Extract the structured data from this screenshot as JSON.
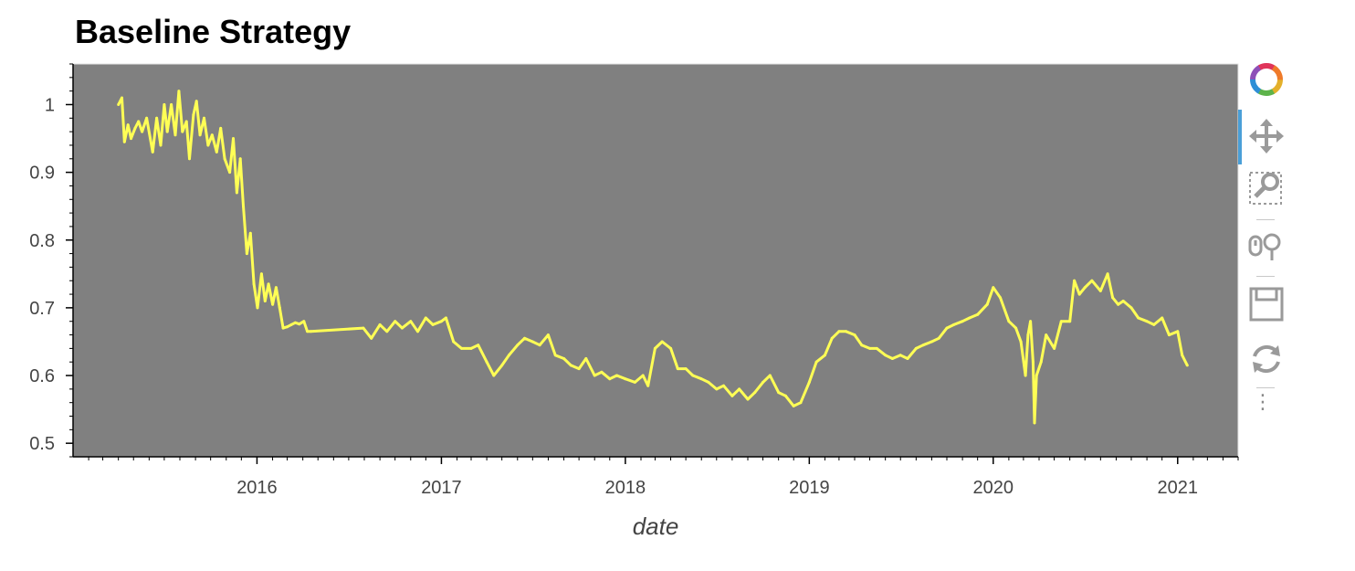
{
  "chart_data": {
    "type": "line",
    "title": "Baseline Strategy",
    "xlabel": "date",
    "ylabel": "",
    "x_tick_labels": [
      "2016",
      "2017",
      "2018",
      "2019",
      "2020",
      "2021"
    ],
    "y_tick_labels": [
      "0.5",
      "0.6",
      "0.7",
      "0.8",
      "0.9",
      "1"
    ],
    "y_ticks": [
      0.5,
      0.6,
      0.7,
      0.8,
      0.9,
      1.0
    ],
    "ylim": [
      0.48,
      1.06
    ],
    "xlim": [
      "2015-01-01",
      "2021-05-01"
    ],
    "grid": false,
    "colors": {
      "plot_background": "#808080",
      "line": "#ffff55"
    },
    "series": [
      {
        "x": [
          "2015-04-01",
          "2015-04-08",
          "2015-04-13",
          "2015-04-20",
          "2015-04-26",
          "2015-05-04",
          "2015-05-11",
          "2015-05-18",
          "2015-05-27",
          "2015-06-08",
          "2015-06-16",
          "2015-06-24",
          "2015-07-01",
          "2015-07-07",
          "2015-07-15",
          "2015-07-23",
          "2015-07-30",
          "2015-08-06",
          "2015-08-14",
          "2015-08-20",
          "2015-08-28",
          "2015-09-03",
          "2015-09-10",
          "2015-09-18",
          "2015-09-26",
          "2015-10-04",
          "2015-10-13",
          "2015-10-21",
          "2015-10-29",
          "2015-11-08",
          "2015-11-15",
          "2015-11-22",
          "2015-11-29",
          "2015-12-05",
          "2015-12-12",
          "2015-12-19",
          "2015-12-26",
          "2016-01-02",
          "2016-01-10",
          "2016-01-17",
          "2016-01-24",
          "2016-02-01",
          "2016-02-08",
          "2016-02-15",
          "2016-02-22",
          "2016-03-01",
          "2016-03-09",
          "2016-03-17",
          "2016-03-25",
          "2016-04-03",
          "2016-04-10",
          "2016-04-17",
          "2016-07-30",
          "2016-08-15",
          "2016-09-01",
          "2016-09-15",
          "2016-10-01",
          "2016-10-15",
          "2016-11-01",
          "2016-11-15",
          "2016-12-01",
          "2016-12-15",
          "2017-01-01",
          "2017-01-10",
          "2017-01-25",
          "2017-02-10",
          "2017-03-01",
          "2017-03-15",
          "2017-04-01",
          "2017-04-15",
          "2017-05-01",
          "2017-05-15",
          "2017-06-01",
          "2017-06-15",
          "2017-07-01",
          "2017-07-15",
          "2017-08-01",
          "2017-08-15",
          "2017-09-01",
          "2017-09-15",
          "2017-10-01",
          "2017-10-15",
          "2017-11-01",
          "2017-11-15",
          "2017-12-01",
          "2017-12-15",
          "2018-01-01",
          "2018-01-20",
          "2018-02-05",
          "2018-02-15",
          "2018-03-01",
          "2018-03-15",
          "2018-04-01",
          "2018-04-15",
          "2018-05-01",
          "2018-05-15",
          "2018-06-01",
          "2018-06-15",
          "2018-07-01",
          "2018-07-15",
          "2018-08-01",
          "2018-08-15",
          "2018-09-01",
          "2018-09-15",
          "2018-10-01",
          "2018-10-15",
          "2018-11-01",
          "2018-11-15",
          "2018-12-01",
          "2018-12-15",
          "2019-01-01",
          "2019-01-15",
          "2019-02-01",
          "2019-02-15",
          "2019-03-01",
          "2019-03-15",
          "2019-04-01",
          "2019-04-15",
          "2019-05-01",
          "2019-05-15",
          "2019-06-01",
          "2019-06-15",
          "2019-07-01",
          "2019-07-15",
          "2019-08-01",
          "2019-08-15",
          "2019-09-01",
          "2019-09-15",
          "2019-10-01",
          "2019-10-15",
          "2019-11-01",
          "2019-11-15",
          "2019-12-01",
          "2019-12-20",
          "2020-01-01",
          "2020-01-15",
          "2020-02-01",
          "2020-02-15",
          "2020-02-25",
          "2020-03-05",
          "2020-03-10",
          "2020-03-15",
          "2020-03-20",
          "2020-03-23",
          "2020-03-27",
          "2020-04-05",
          "2020-04-15",
          "2020-05-01",
          "2020-05-15",
          "2020-06-01",
          "2020-06-10",
          "2020-06-20",
          "2020-07-01",
          "2020-07-15",
          "2020-08-01",
          "2020-08-15",
          "2020-08-25",
          "2020-09-05",
          "2020-09-15",
          "2020-10-01",
          "2020-10-15",
          "2020-11-01",
          "2020-11-15",
          "2020-12-01",
          "2020-12-15",
          "2021-01-01",
          "2021-01-10",
          "2021-01-20"
        ],
        "values": [
          1.0,
          1.01,
          0.945,
          0.97,
          0.95,
          0.965,
          0.975,
          0.96,
          0.98,
          0.93,
          0.98,
          0.94,
          1.0,
          0.96,
          1.0,
          0.955,
          1.02,
          0.96,
          0.975,
          0.92,
          0.985,
          1.005,
          0.955,
          0.98,
          0.94,
          0.955,
          0.93,
          0.965,
          0.92,
          0.9,
          0.95,
          0.87,
          0.92,
          0.85,
          0.78,
          0.81,
          0.735,
          0.7,
          0.75,
          0.71,
          0.735,
          0.705,
          0.73,
          0.7,
          0.67,
          0.672,
          0.675,
          0.678,
          0.676,
          0.68,
          0.665,
          0.665,
          0.67,
          0.655,
          0.675,
          0.665,
          0.68,
          0.67,
          0.68,
          0.665,
          0.685,
          0.675,
          0.68,
          0.685,
          0.65,
          0.64,
          0.64,
          0.645,
          0.62,
          0.6,
          0.615,
          0.63,
          0.645,
          0.655,
          0.65,
          0.645,
          0.66,
          0.63,
          0.625,
          0.615,
          0.61,
          0.625,
          0.6,
          0.605,
          0.595,
          0.6,
          0.595,
          0.59,
          0.6,
          0.585,
          0.64,
          0.65,
          0.64,
          0.61,
          0.61,
          0.6,
          0.595,
          0.59,
          0.58,
          0.585,
          0.57,
          0.58,
          0.565,
          0.575,
          0.59,
          0.6,
          0.575,
          0.57,
          0.555,
          0.56,
          0.59,
          0.62,
          0.63,
          0.655,
          0.665,
          0.665,
          0.66,
          0.645,
          0.64,
          0.64,
          0.63,
          0.625,
          0.63,
          0.625,
          0.64,
          0.645,
          0.65,
          0.655,
          0.67,
          0.675,
          0.68,
          0.685,
          0.69,
          0.705,
          0.73,
          0.715,
          0.68,
          0.67,
          0.65,
          0.6,
          0.66,
          0.68,
          0.62,
          0.53,
          0.6,
          0.62,
          0.66,
          0.64,
          0.68,
          0.68,
          0.74,
          0.72,
          0.73,
          0.74,
          0.725,
          0.75,
          0.715,
          0.705,
          0.71,
          0.7,
          0.685,
          0.68,
          0.675,
          0.685,
          0.66,
          0.665,
          0.63,
          0.615
        ]
      }
    ]
  },
  "toolbar": {
    "tools": [
      {
        "name": "bokeh-logo-icon",
        "interactable": true
      },
      {
        "name": "pan-icon",
        "interactable": true
      },
      {
        "name": "box-zoom-icon",
        "interactable": true
      },
      {
        "name": "wheel-zoom-icon",
        "interactable": true
      },
      {
        "name": "save-icon",
        "interactable": true
      },
      {
        "name": "reset-icon",
        "interactable": true
      }
    ],
    "more_label": "⋮"
  }
}
